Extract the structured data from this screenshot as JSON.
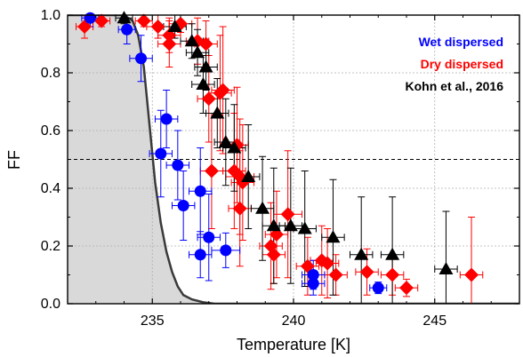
{
  "chart_data": {
    "type": "scatter",
    "title": "",
    "xlabel": "Temperature [K]",
    "ylabel": "FF",
    "xlim": [
      232,
      248
    ],
    "ylim": [
      0,
      1
    ],
    "x_ticks": [
      235,
      240,
      245
    ],
    "x_tick_labels": [
      "235",
      "240",
      "245"
    ],
    "y_ticks": [
      0,
      0.2,
      0.4,
      0.6,
      0.8,
      1
    ],
    "y_tick_labels": [
      "0.0",
      "0.2",
      "0.4",
      "0.6",
      "0.8",
      "1.0"
    ],
    "grid": true,
    "legend_position": "top-right",
    "reference_line_y": 0.5,
    "shaded_curve": {
      "color": "#3a3a3a",
      "fill": "#d9d9d9",
      "points": [
        [
          232,
          1.0
        ],
        [
          234.0,
          1.0
        ],
        [
          234.3,
          0.98
        ],
        [
          234.5,
          0.93
        ],
        [
          234.7,
          0.82
        ],
        [
          234.9,
          0.62
        ],
        [
          235.1,
          0.42
        ],
        [
          235.3,
          0.28
        ],
        [
          235.5,
          0.18
        ],
        [
          235.7,
          0.11
        ],
        [
          235.9,
          0.06
        ],
        [
          236.1,
          0.03
        ],
        [
          236.4,
          0.015
        ],
        [
          236.8,
          0.005
        ],
        [
          237.2,
          0.0
        ]
      ]
    },
    "series": [
      {
        "name": "Wet dispersed",
        "color": "#0000ff",
        "marker": "circle",
        "points": [
          {
            "x": 232.8,
            "y": 0.99,
            "xerr": 0.3,
            "yerr": 0.03
          },
          {
            "x": 234.1,
            "y": 0.95,
            "xerr": 0.3,
            "yerr": 0.05
          },
          {
            "x": 234.6,
            "y": 0.85,
            "xerr": 0.4,
            "yerr": 0.08
          },
          {
            "x": 235.5,
            "y": 0.64,
            "xerr": 0.4,
            "yerr": 0.1
          },
          {
            "x": 235.3,
            "y": 0.52,
            "xerr": 0.4,
            "yerr": 0.15
          },
          {
            "x": 235.9,
            "y": 0.48,
            "xerr": 0.4,
            "yerr": 0.12
          },
          {
            "x": 236.1,
            "y": 0.34,
            "xerr": 0.4,
            "yerr": 0.12
          },
          {
            "x": 236.7,
            "y": 0.39,
            "xerr": 0.4,
            "yerr": 0.15
          },
          {
            "x": 237.0,
            "y": 0.23,
            "xerr": 0.4,
            "yerr": 0.15
          },
          {
            "x": 236.7,
            "y": 0.17,
            "xerr": 0.4,
            "yerr": 0.08
          },
          {
            "x": 237.6,
            "y": 0.185,
            "xerr": 0.5,
            "yerr": 0.06
          },
          {
            "x": 240.7,
            "y": 0.1,
            "xerr": 0.4,
            "yerr": 0.05
          },
          {
            "x": 240.7,
            "y": 0.07,
            "xerr": 0.4,
            "yerr": 0.04
          },
          {
            "x": 243.0,
            "y": 0.055,
            "xerr": 0.3,
            "yerr": 0.02
          }
        ]
      },
      {
        "name": "Dry dispersed",
        "color": "#ff0000",
        "marker": "diamond",
        "points": [
          {
            "x": 232.6,
            "y": 0.96,
            "xerr": 0.3,
            "yerr": 0.04
          },
          {
            "x": 233.2,
            "y": 0.98,
            "xerr": 0.3,
            "yerr": 0.02
          },
          {
            "x": 234.7,
            "y": 0.98,
            "xerr": 0.3,
            "yerr": 0.02
          },
          {
            "x": 235.2,
            "y": 0.96,
            "xerr": 0.4,
            "yerr": 0.04
          },
          {
            "x": 235.6,
            "y": 0.93,
            "xerr": 0.4,
            "yerr": 0.06
          },
          {
            "x": 235.6,
            "y": 0.9,
            "xerr": 0.4,
            "yerr": 0.08
          },
          {
            "x": 236.0,
            "y": 0.97,
            "xerr": 0.4,
            "yerr": 0.03
          },
          {
            "x": 236.6,
            "y": 0.91,
            "xerr": 0.4,
            "yerr": 0.08
          },
          {
            "x": 236.9,
            "y": 0.9,
            "xerr": 0.4,
            "yerr": 0.08
          },
          {
            "x": 237.0,
            "y": 0.71,
            "xerr": 0.4,
            "yerr": 0.15
          },
          {
            "x": 237.4,
            "y": 0.73,
            "xerr": 0.4,
            "yerr": 0.2
          },
          {
            "x": 237.5,
            "y": 0.74,
            "xerr": 0.4,
            "yerr": 0.22
          },
          {
            "x": 237.1,
            "y": 0.46,
            "xerr": 0.4,
            "yerr": 0.2
          },
          {
            "x": 237.9,
            "y": 0.46,
            "xerr": 0.4,
            "yerr": 0.2
          },
          {
            "x": 238.0,
            "y": 0.55,
            "xerr": 0.4,
            "yerr": 0.2
          },
          {
            "x": 238.1,
            "y": 0.44,
            "xerr": 0.5,
            "yerr": 0.2
          },
          {
            "x": 238.2,
            "y": 0.42,
            "xerr": 0.4,
            "yerr": 0.2
          },
          {
            "x": 238.1,
            "y": 0.33,
            "xerr": 0.4,
            "yerr": 0.2
          },
          {
            "x": 239.2,
            "y": 0.2,
            "xerr": 0.4,
            "yerr": 0.15
          },
          {
            "x": 239.3,
            "y": 0.17,
            "xerr": 0.4,
            "yerr": 0.1
          },
          {
            "x": 239.4,
            "y": 0.24,
            "xerr": 0.4,
            "yerr": 0.15
          },
          {
            "x": 239.8,
            "y": 0.31,
            "xerr": 0.5,
            "yerr": 0.22
          },
          {
            "x": 240.5,
            "y": 0.13,
            "xerr": 0.4,
            "yerr": 0.1
          },
          {
            "x": 241.0,
            "y": 0.15,
            "xerr": 0.4,
            "yerr": 0.12
          },
          {
            "x": 241.2,
            "y": 0.14,
            "xerr": 0.4,
            "yerr": 0.12
          },
          {
            "x": 241.5,
            "y": 0.1,
            "xerr": 0.4,
            "yerr": 0.07
          },
          {
            "x": 242.6,
            "y": 0.11,
            "xerr": 0.4,
            "yerr": 0.08
          },
          {
            "x": 243.5,
            "y": 0.1,
            "xerr": 0.4,
            "yerr": 0.07
          },
          {
            "x": 244.0,
            "y": 0.055,
            "xerr": 0.4,
            "yerr": 0.03
          },
          {
            "x": 246.3,
            "y": 0.1,
            "xerr": 0.4,
            "yerr": 0.2
          }
        ]
      },
      {
        "name": "Kohn et al., 2016",
        "color": "#000000",
        "marker": "triangle",
        "points": [
          {
            "x": 234.0,
            "y": 0.99,
            "xerr": 0.3,
            "yerr": 0.02
          },
          {
            "x": 235.8,
            "y": 0.96,
            "xerr": 0.4,
            "yerr": 0.04
          },
          {
            "x": 236.4,
            "y": 0.91,
            "xerr": 0.4,
            "yerr": 0.06
          },
          {
            "x": 236.6,
            "y": 0.87,
            "xerr": 0.4,
            "yerr": 0.08
          },
          {
            "x": 236.9,
            "y": 0.82,
            "xerr": 0.4,
            "yerr": 0.08
          },
          {
            "x": 236.8,
            "y": 0.76,
            "xerr": 0.4,
            "yerr": 0.1
          },
          {
            "x": 237.3,
            "y": 0.66,
            "xerr": 0.4,
            "yerr": 0.12
          },
          {
            "x": 237.6,
            "y": 0.56,
            "xerr": 0.4,
            "yerr": 0.15
          },
          {
            "x": 237.9,
            "y": 0.54,
            "xerr": 0.4,
            "yerr": 0.15
          },
          {
            "x": 238.4,
            "y": 0.44,
            "xerr": 0.4,
            "yerr": 0.18
          },
          {
            "x": 238.9,
            "y": 0.33,
            "xerr": 0.4,
            "yerr": 0.18
          },
          {
            "x": 239.3,
            "y": 0.27,
            "xerr": 0.4,
            "yerr": 0.2
          },
          {
            "x": 239.9,
            "y": 0.27,
            "xerr": 0.4,
            "yerr": 0.2
          },
          {
            "x": 240.4,
            "y": 0.26,
            "xerr": 0.4,
            "yerr": 0.2
          },
          {
            "x": 241.4,
            "y": 0.23,
            "xerr": 0.4,
            "yerr": 0.2
          },
          {
            "x": 242.4,
            "y": 0.17,
            "xerr": 0.4,
            "yerr": 0.2
          },
          {
            "x": 243.5,
            "y": 0.17,
            "xerr": 0.4,
            "yerr": 0.2
          },
          {
            "x": 245.4,
            "y": 0.12,
            "xerr": 0.4,
            "yerr": 0.2
          }
        ]
      }
    ]
  }
}
